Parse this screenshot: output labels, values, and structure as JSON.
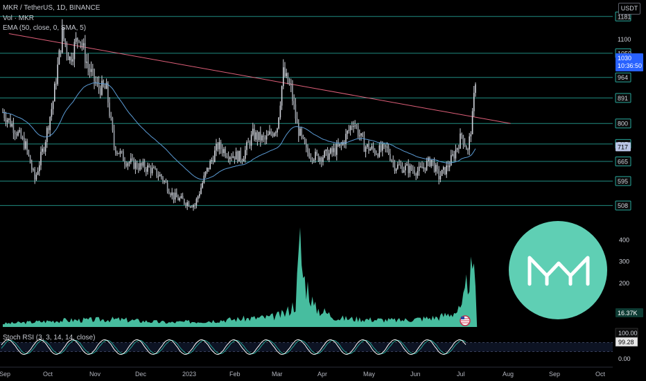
{
  "header": {
    "symbol": "MKR / TetherUS, 1D, BINANCE",
    "vol": "Vol · MKR",
    "ema": "EMA (50, close, 0, SMA, 5)",
    "rsi": "Stoch RSI (3, 3, 14, 14, close)"
  },
  "currency_badge": "USDT",
  "last_price": {
    "value": "1030",
    "countdown": "10:36:50"
  },
  "colors": {
    "up": "#26a69a",
    "down": "#ef5350",
    "candle": "#d1d4dc",
    "ema": "#5b9bd5",
    "trendline": "#e0607a",
    "hline": "#26a69a",
    "price_tag": "#2962ff",
    "volume": "#4fd1b0",
    "rsi_k": "#ffffff",
    "rsi_d": "#26a69a"
  },
  "chart_data": [
    {
      "type": "candlestick",
      "title": "MKR / TetherUS, 1D, BINANCE",
      "x_tick_labels": [
        "Sep",
        "Oct",
        "Nov",
        "Dec",
        "2023",
        "Feb",
        "Mar",
        "Apr",
        "May",
        "Jun",
        "Jul",
        "Aug",
        "Sep",
        "Oct"
      ],
      "y_tick_labels": [
        "1181",
        "1100",
        "1050",
        "964",
        "891",
        "800",
        "727",
        "717",
        "665",
        "595",
        "508"
      ],
      "horizontal_levels": [
        1181,
        1050,
        964,
        891,
        800,
        727,
        665,
        595,
        508
      ],
      "ema_marker": 717,
      "last_price": 1030,
      "ylim": [
        470,
        1215
      ],
      "trendline": {
        "from": [
          "Sep 2022",
          1120
        ],
        "to": [
          "Jul 2023",
          800
        ]
      },
      "price_path": [
        {
          "date": "2022-08-28",
          "close": 840
        },
        {
          "date": "2022-09-05",
          "close": 780
        },
        {
          "date": "2022-09-12",
          "close": 720
        },
        {
          "date": "2022-09-18",
          "close": 600
        },
        {
          "date": "2022-09-24",
          "close": 720
        },
        {
          "date": "2022-09-30",
          "close": 880
        },
        {
          "date": "2022-10-06",
          "close": 1120
        },
        {
          "date": "2022-10-11",
          "close": 1030
        },
        {
          "date": "2022-10-17",
          "close": 1120
        },
        {
          "date": "2022-10-23",
          "close": 1000
        },
        {
          "date": "2022-10-29",
          "close": 930
        },
        {
          "date": "2022-11-04",
          "close": 920
        },
        {
          "date": "2022-11-09",
          "close": 720
        },
        {
          "date": "2022-11-16",
          "close": 670
        },
        {
          "date": "2022-11-24",
          "close": 650
        },
        {
          "date": "2022-12-02",
          "close": 640
        },
        {
          "date": "2022-12-10",
          "close": 610
        },
        {
          "date": "2022-12-18",
          "close": 540
        },
        {
          "date": "2022-12-26",
          "close": 520
        },
        {
          "date": "2023-01-01",
          "close": 510
        },
        {
          "date": "2023-01-08",
          "close": 620
        },
        {
          "date": "2023-01-16",
          "close": 720
        },
        {
          "date": "2023-01-24",
          "close": 690
        },
        {
          "date": "2023-02-01",
          "close": 680
        },
        {
          "date": "2023-02-08",
          "close": 760
        },
        {
          "date": "2023-02-16",
          "close": 740
        },
        {
          "date": "2023-02-24",
          "close": 790
        },
        {
          "date": "2023-02-28",
          "close": 980
        },
        {
          "date": "2023-03-05",
          "close": 920
        },
        {
          "date": "2023-03-09",
          "close": 790
        },
        {
          "date": "2023-03-15",
          "close": 700
        },
        {
          "date": "2023-03-22",
          "close": 680
        },
        {
          "date": "2023-03-30",
          "close": 690
        },
        {
          "date": "2023-04-07",
          "close": 720
        },
        {
          "date": "2023-04-15",
          "close": 810
        },
        {
          "date": "2023-04-22",
          "close": 720
        },
        {
          "date": "2023-04-30",
          "close": 700
        },
        {
          "date": "2023-05-07",
          "close": 710
        },
        {
          "date": "2023-05-12",
          "close": 650
        },
        {
          "date": "2023-05-20",
          "close": 640
        },
        {
          "date": "2023-05-28",
          "close": 630
        },
        {
          "date": "2023-06-05",
          "close": 670
        },
        {
          "date": "2023-06-10",
          "close": 610
        },
        {
          "date": "2023-06-15",
          "close": 640
        },
        {
          "date": "2023-06-20",
          "close": 690
        },
        {
          "date": "2023-06-25",
          "close": 760
        },
        {
          "date": "2023-06-29",
          "close": 700
        },
        {
          "date": "2023-07-02",
          "close": 820
        },
        {
          "date": "2023-07-05",
          "close": 1030
        }
      ]
    },
    {
      "type": "area",
      "title": "Vol · MKR",
      "y_tick_labels": [
        "400",
        "300",
        "200"
      ],
      "ylim": [
        0,
        420
      ],
      "last_value": "16.37K",
      "series": [
        {
          "date": "2022-08-28",
          "value": 15
        },
        {
          "date": "2022-10-06",
          "value": 30
        },
        {
          "date": "2022-11-10",
          "value": 35
        },
        {
          "date": "2022-12-15",
          "value": 20
        },
        {
          "date": "2023-01-10",
          "value": 28
        },
        {
          "date": "2023-02-20",
          "value": 45
        },
        {
          "date": "2023-03-01",
          "value": 60
        },
        {
          "date": "2023-03-08",
          "value": 110
        },
        {
          "date": "2023-03-11",
          "value": 385
        },
        {
          "date": "2023-03-13",
          "value": 230
        },
        {
          "date": "2023-03-17",
          "value": 170
        },
        {
          "date": "2023-03-20",
          "value": 90
        },
        {
          "date": "2023-04-05",
          "value": 40
        },
        {
          "date": "2023-05-15",
          "value": 30
        },
        {
          "date": "2023-06-10",
          "value": 45
        },
        {
          "date": "2023-06-25",
          "value": 80
        },
        {
          "date": "2023-06-30",
          "value": 250
        },
        {
          "date": "2023-07-05",
          "value": 190
        }
      ]
    },
    {
      "type": "line",
      "title": "Stoch RSI (3, 3, 14, 14, close)",
      "y_tick_labels": [
        "100.00",
        "99.28",
        "0.00"
      ],
      "ylim": [
        0,
        100
      ],
      "overbought": 80,
      "oversold": 20,
      "last_k": "99.28"
    }
  ]
}
